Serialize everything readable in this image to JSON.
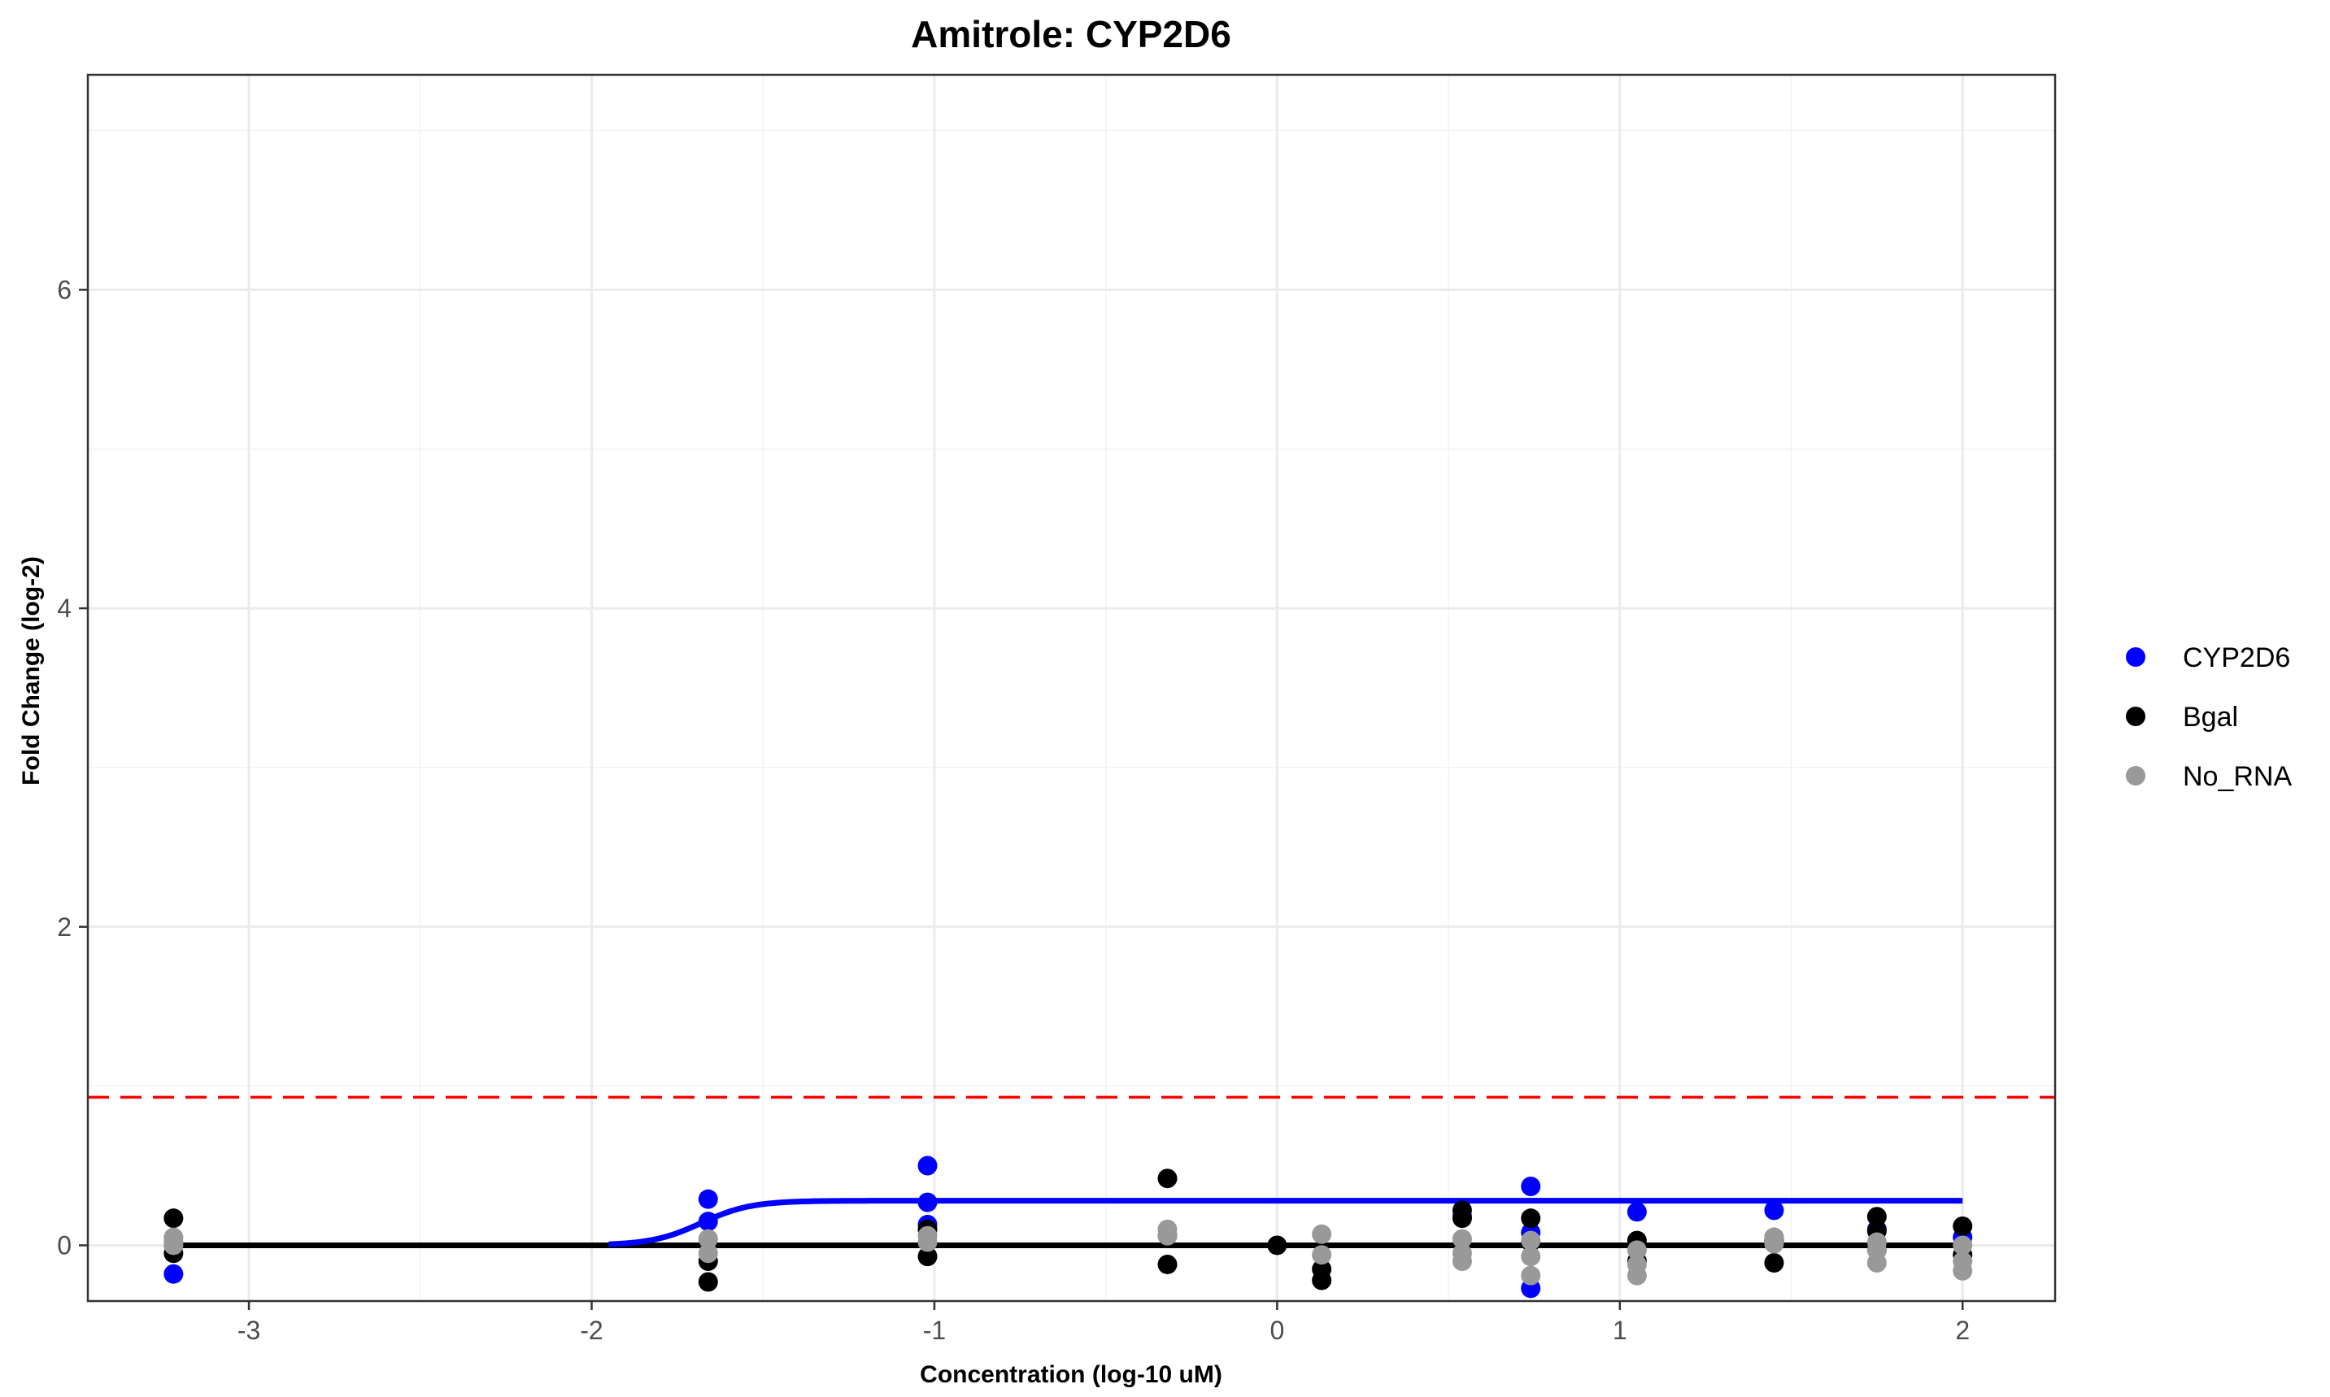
{
  "chart_data": {
    "type": "scatter",
    "title": "Amitrole: CYP2D6",
    "xlabel": "Concentration (log-10 uM)",
    "ylabel": "Fold Change (log-2)",
    "xlim": [
      -3.47,
      2.27
    ],
    "ylim": [
      -0.35,
      7.35
    ],
    "x_ticks": [
      -3,
      -2,
      -1,
      0,
      1,
      2
    ],
    "x_tick_labels": [
      "-3",
      "-2",
      "-1",
      "0",
      "1",
      "2"
    ],
    "y_ticks": [
      0,
      2,
      4,
      6
    ],
    "y_tick_labels": [
      "0",
      "2",
      "4",
      "6"
    ],
    "grid": true,
    "legend_position": "right",
    "threshold_line": {
      "y": 0.93,
      "color": "#ff0000",
      "style": "dashed"
    },
    "series": [
      {
        "name": "CYP2D6",
        "color": "#0000ff",
        "points": [
          [
            -3.22,
            -0.18
          ],
          [
            -3.22,
            0.0
          ],
          [
            -1.66,
            0.29
          ],
          [
            -1.66,
            0.15
          ],
          [
            -1.02,
            0.5
          ],
          [
            -1.02,
            0.27
          ],
          [
            -1.02,
            0.13
          ],
          [
            0.54,
            0.18
          ],
          [
            0.74,
            0.37
          ],
          [
            0.74,
            0.08
          ],
          [
            0.74,
            -0.27
          ],
          [
            1.05,
            0.21
          ],
          [
            1.45,
            0.22
          ],
          [
            1.45,
            0.05
          ],
          [
            1.75,
            0.1
          ],
          [
            2.0,
            0.05
          ]
        ],
        "fit_line": {
          "bottom": 0.0,
          "top": 0.28,
          "ec50_log": -1.68,
          "hill": 6.0,
          "x_start": -1.95,
          "x_end": 2.0
        }
      },
      {
        "name": "Bgal",
        "color": "#000000",
        "points": [
          [
            -3.22,
            0.17
          ],
          [
            -3.22,
            -0.05
          ],
          [
            -1.66,
            -0.1
          ],
          [
            -1.66,
            -0.23
          ],
          [
            -1.02,
            0.1
          ],
          [
            -1.02,
            -0.07
          ],
          [
            -0.32,
            0.42
          ],
          [
            -0.32,
            0.06
          ],
          [
            -0.32,
            -0.12
          ],
          [
            0.13,
            -0.15
          ],
          [
            -0.0,
            0.0
          ],
          [
            0.13,
            -0.22
          ],
          [
            0.54,
            0.22
          ],
          [
            0.54,
            0.17
          ],
          [
            0.74,
            0.17
          ],
          [
            0.74,
            0.02
          ],
          [
            1.05,
            0.03
          ],
          [
            1.05,
            -0.1
          ],
          [
            1.45,
            -0.11
          ],
          [
            1.45,
            0.03
          ],
          [
            1.75,
            0.18
          ],
          [
            1.75,
            0.09
          ],
          [
            1.75,
            -0.03
          ],
          [
            2.0,
            0.12
          ],
          [
            2.0,
            -0.06
          ]
        ],
        "fit_line": {
          "constant": 0.0,
          "x_start": -3.22,
          "x_end": 2.0
        }
      },
      {
        "name": "No_RNA",
        "color": "#999999",
        "points": [
          [
            -3.22,
            0.05
          ],
          [
            -3.22,
            0.0
          ],
          [
            -3.22,
            0.02
          ],
          [
            -1.66,
            0.04
          ],
          [
            -1.66,
            -0.05
          ],
          [
            -1.02,
            0.06
          ],
          [
            -1.02,
            0.02
          ],
          [
            -0.32,
            0.1
          ],
          [
            -0.32,
            0.06
          ],
          [
            0.13,
            0.07
          ],
          [
            0.13,
            -0.06
          ],
          [
            0.54,
            0.04
          ],
          [
            0.54,
            -0.1
          ],
          [
            0.54,
            -0.05
          ],
          [
            0.74,
            0.03
          ],
          [
            0.74,
            -0.07
          ],
          [
            0.74,
            -0.19
          ],
          [
            1.05,
            -0.03
          ],
          [
            1.05,
            -0.19
          ],
          [
            1.05,
            -0.12
          ],
          [
            1.45,
            0.05
          ],
          [
            1.45,
            0.01
          ],
          [
            1.75,
            -0.03
          ],
          [
            1.75,
            -0.11
          ],
          [
            1.75,
            0.02
          ],
          [
            2.0,
            0.0
          ],
          [
            2.0,
            -0.1
          ],
          [
            2.0,
            -0.16
          ]
        ],
        "fit_line": {
          "constant": 0.0,
          "x_start": -3.22,
          "x_end": 2.0
        }
      }
    ]
  }
}
